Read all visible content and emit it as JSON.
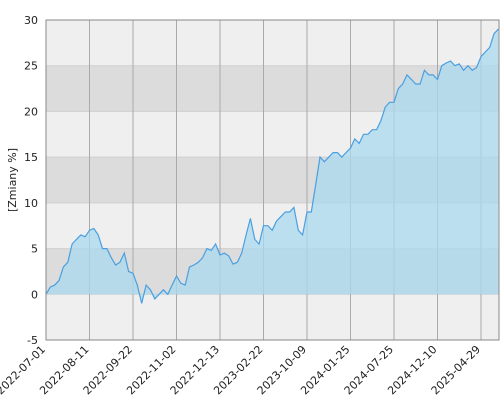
{
  "chart_data": {
    "type": "area",
    "y_label": "[Zmiany %]",
    "categories": [
      "2022-07-01",
      null,
      null,
      null,
      null,
      null,
      null,
      null,
      null,
      null,
      "2022-08-11",
      null,
      null,
      null,
      null,
      null,
      null,
      null,
      null,
      null,
      "2022-09-22",
      null,
      null,
      null,
      null,
      null,
      null,
      null,
      null,
      null,
      "2022-11-02",
      null,
      null,
      null,
      null,
      null,
      null,
      null,
      null,
      null,
      "2022-12-13",
      null,
      null,
      null,
      null,
      null,
      null,
      null,
      null,
      null,
      "2023-02-22",
      null,
      null,
      null,
      null,
      null,
      null,
      null,
      null,
      null,
      "2023-10-09",
      null,
      null,
      null,
      null,
      null,
      null,
      null,
      null,
      null,
      "2024-01-25",
      null,
      null,
      null,
      null,
      null,
      null,
      null,
      null,
      null,
      "2024-07-25",
      null,
      null,
      null,
      null,
      null,
      null,
      null,
      null,
      null,
      "2024-12-10",
      null,
      null,
      null,
      null,
      null,
      null,
      null,
      null,
      null,
      "2025-04-29",
      null,
      null,
      null,
      null
    ],
    "values": [
      0,
      0.8,
      1,
      1.5,
      3,
      3.5,
      5.5,
      6,
      6.5,
      6.3,
      7,
      7.2,
      6.5,
      5,
      5,
      4,
      3.2,
      3.5,
      4.5,
      2.5,
      2.3,
      1,
      -1,
      1,
      0.5,
      -0.5,
      0,
      0.5,
      0,
      1,
      2,
      1.2,
      1,
      3,
      3.2,
      3.5,
      4,
      5,
      4.8,
      5.5,
      4.3,
      4.5,
      4.2,
      3.3,
      3.5,
      4.5,
      6.5,
      8.3,
      6,
      5.5,
      7.5,
      7.5,
      7,
      8,
      8.5,
      9,
      9,
      9.5,
      7,
      6.5,
      9,
      9,
      12,
      15,
      14.5,
      15,
      15.5,
      15.5,
      15,
      15.5,
      16,
      17,
      16.5,
      17.5,
      17.5,
      18,
      18,
      19,
      20.5,
      21,
      21,
      22.5,
      23,
      24,
      23.5,
      23,
      23,
      24.5,
      24,
      24,
      23.5,
      25,
      25.3,
      25.5,
      25,
      25.2,
      24.5,
      25,
      24.5,
      24.8,
      26,
      26.5,
      27,
      28.5,
      29
    ],
    "color": "#4a9fe0",
    "fill": "#a9d9ef",
    "ylim": [
      -5,
      30
    ],
    "yticks": [
      -5,
      0,
      5,
      10,
      15,
      20,
      25,
      30
    ],
    "bands": [
      "#efefef",
      "#dcdcdc"
    ],
    "grid": true
  }
}
